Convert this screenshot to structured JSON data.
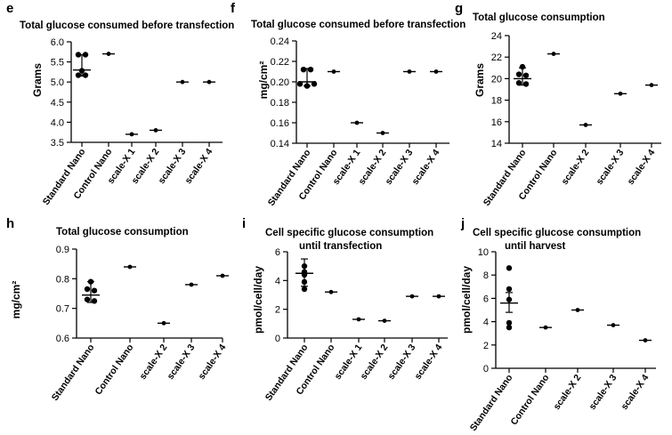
{
  "chart_data": [
    {
      "panel": "e",
      "type": "scatter",
      "title": "Total glucose consumed before transfection",
      "ylabel": "Grams",
      "ylim": [
        3.5,
        6.0
      ],
      "yticks": [
        "3.5",
        "4.0",
        "4.5",
        "5.0",
        "5.5",
        "6.0"
      ],
      "categories": [
        "Standard Nano",
        "Control Nano",
        "scale-X 1",
        "scale-X 2",
        "scale-X 3",
        "scale-X 4"
      ],
      "points": [
        [
          5.68,
          5.68,
          5.28,
          5.17,
          5.17
        ],
        [
          5.7
        ],
        [
          3.7
        ],
        [
          3.8
        ],
        [
          5.0
        ],
        [
          5.0
        ]
      ],
      "means": [
        5.3,
        5.7,
        3.7,
        3.8,
        5.0,
        5.0
      ],
      "error": [
        [
          5.15,
          5.68
        ],
        null,
        null,
        null,
        null,
        null
      ]
    },
    {
      "panel": "f",
      "type": "scatter",
      "title": "Total glucose consumed before transfection",
      "ylabel": "mg/cm²",
      "ylim": [
        0.14,
        0.24
      ],
      "yticks": [
        "0.14",
        "0.16",
        "0.18",
        "0.20",
        "0.22",
        "0.24"
      ],
      "categories": [
        "Standard Nano",
        "Control Nano",
        "scale-X 1",
        "scale-X 2",
        "scale-X 3",
        "scale-X 4"
      ],
      "points": [
        [
          0.212,
          0.212,
          0.198,
          0.196,
          0.198
        ],
        [
          0.21
        ],
        [
          0.16
        ],
        [
          0.15
        ],
        [
          0.21
        ],
        [
          0.21
        ]
      ],
      "means": [
        0.2,
        0.21,
        0.16,
        0.15,
        0.21,
        0.21
      ],
      "error": [
        [
          0.196,
          0.213
        ],
        null,
        null,
        null,
        null,
        null
      ]
    },
    {
      "panel": "g",
      "type": "scatter",
      "title": "Total glucose consumption",
      "ylabel": "Grams",
      "ylim": [
        14,
        24
      ],
      "yticks": [
        "14",
        "16",
        "18",
        "20",
        "22",
        "24"
      ],
      "categories": [
        "Standard Nano",
        "Control Nano",
        "scale-X 2",
        "scale-X 3",
        "scale-X 4"
      ],
      "points": [
        [
          21.1,
          20.4,
          20.3,
          19.6,
          19.5
        ],
        [
          22.3
        ],
        [
          15.7
        ],
        [
          18.6
        ],
        [
          19.4
        ]
      ],
      "means": [
        20.0,
        22.3,
        15.7,
        18.6,
        19.4
      ],
      "error": [
        [
          19.4,
          21.0
        ],
        null,
        null,
        null,
        null
      ]
    },
    {
      "panel": "h",
      "type": "scatter",
      "title": "Total glucose consumption",
      "ylabel": "mg/cm²",
      "ylim": [
        0.6,
        0.9
      ],
      "yticks": [
        "0.6",
        "0.7",
        "0.8",
        "0.9"
      ],
      "categories": [
        "Standard Nano",
        "Control Nano",
        "scale-X 2",
        "scale-X 3",
        "scale-X 4"
      ],
      "points": [
        [
          0.79,
          0.765,
          0.76,
          0.73,
          0.725
        ],
        [
          0.84
        ],
        [
          0.65
        ],
        [
          0.78
        ],
        [
          0.81
        ]
      ],
      "means": [
        0.745,
        0.84,
        0.65,
        0.78,
        0.81
      ],
      "error": [
        [
          0.72,
          0.79
        ],
        null,
        null,
        null,
        null
      ]
    },
    {
      "panel": "i",
      "type": "scatter",
      "title": "Cell specific glucose consumption until transfection",
      "ylabel": "pmol/cell/day",
      "ylim": [
        0,
        6
      ],
      "yticks": [
        "0",
        "2",
        "4",
        "6"
      ],
      "categories": [
        "Standard Nano",
        "Control Nano",
        "scale-X 1",
        "scale-X 2",
        "scale-X 3",
        "scale-X 4"
      ],
      "points": [
        [
          5.0,
          4.6,
          4.4,
          3.9,
          3.4
        ],
        [
          3.2
        ],
        [
          1.3
        ],
        [
          1.2
        ],
        [
          2.9
        ],
        [
          2.9
        ]
      ],
      "means": [
        4.5,
        3.2,
        1.3,
        1.2,
        2.9,
        2.9
      ],
      "error": [
        [
          3.6,
          5.5
        ],
        null,
        null,
        null,
        null,
        null
      ]
    },
    {
      "panel": "j",
      "type": "scatter",
      "title": "Cell specific glucose consumption until harvest",
      "ylabel": "pmol/cell/day",
      "ylim": [
        0,
        10
      ],
      "yticks": [
        "0",
        "2",
        "4",
        "6",
        "8",
        "10"
      ],
      "categories": [
        "Standard Nano",
        "Control Nano",
        "scale-X 2",
        "scale-X 3",
        "scale-X 4"
      ],
      "points": [
        [
          8.6,
          6.8,
          5.9,
          3.9,
          3.5
        ],
        [
          3.5
        ],
        [
          5.0
        ],
        [
          3.7
        ],
        [
          2.4
        ]
      ],
      "means": [
        5.6,
        3.5,
        5.0,
        3.7,
        2.4
      ],
      "error": [
        [
          4.8,
          6.5
        ],
        null,
        null,
        null,
        null
      ]
    }
  ]
}
